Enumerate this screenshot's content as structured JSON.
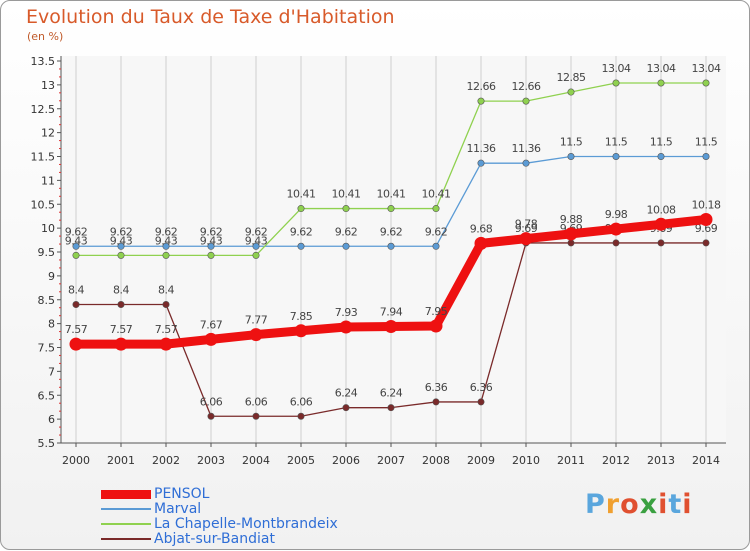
{
  "header": {
    "title": "Evolution du Taux de Taxe d'Habitation",
    "unit": "(en %)"
  },
  "logo": {
    "letters": [
      "P",
      "r",
      "o",
      "x",
      "i",
      "t",
      "i"
    ],
    "colors": [
      "#5aa6dd",
      "#f0a030",
      "#e05030",
      "#3aa040",
      "#e05030",
      "#5aa6dd",
      "#e05030"
    ]
  },
  "colors": {
    "title": "#d85a2a",
    "axis": "#555555",
    "grid": "#cfcfcf",
    "legend_text": "#2f6ed6"
  },
  "chart_data": {
    "type": "line",
    "x": [
      "2000",
      "2001",
      "2002",
      "2003",
      "2004",
      "2005",
      "2006",
      "2007",
      "2008",
      "2009",
      "2010",
      "2011",
      "2012",
      "2013",
      "2014"
    ],
    "yticks": [
      5.5,
      6,
      6.5,
      7,
      7.5,
      8,
      8.5,
      9,
      9.5,
      10,
      10.5,
      11,
      11.5,
      12,
      12.5,
      13,
      13.5
    ],
    "ylim": [
      5.5,
      13.5
    ],
    "grid": "vertical",
    "legend_position": "bottom-left",
    "series": [
      {
        "name": "Marval",
        "color": "#5b9bd5",
        "values": [
          9.62,
          9.62,
          9.62,
          9.62,
          9.62,
          9.62,
          9.62,
          9.62,
          9.62,
          11.36,
          11.36,
          11.5,
          11.5,
          11.5,
          11.5
        ],
        "labels": [
          "9.62",
          "9.62",
          "9.62",
          "9.62",
          "9.62",
          "9.62",
          "9.62",
          "9.62",
          "9.62",
          "11.36",
          "11.36",
          "11.5",
          "11.5",
          "11.5",
          "11.5"
        ]
      },
      {
        "name": "La Chapelle-Montbrandeix",
        "color": "#8fd14f",
        "values": [
          9.43,
          9.43,
          9.43,
          9.43,
          9.43,
          10.41,
          10.41,
          10.41,
          10.41,
          12.66,
          12.66,
          12.85,
          13.04,
          13.04,
          13.04
        ],
        "labels": [
          "9.43",
          "9.43",
          "9.43",
          "9.43",
          "9.43",
          "10.41",
          "10.41",
          "10.41",
          "10.41",
          "12.66",
          "12.66",
          "12.85",
          "13.04",
          "13.04",
          "13.04"
        ]
      },
      {
        "name": "Abjat-sur-Bandiat",
        "color": "#7a2a2a",
        "values": [
          8.4,
          8.4,
          8.4,
          6.06,
          6.06,
          6.06,
          6.24,
          6.24,
          6.36,
          6.36,
          9.69,
          9.69,
          9.69,
          9.69,
          9.69
        ],
        "labels": [
          "8.4",
          "8.4",
          "8.4",
          "6.06",
          "6.06",
          "6.06",
          "6.24",
          "6.24",
          "6.36",
          "6.36",
          "9.69",
          "9.69",
          "9.69",
          "9.69",
          "9.69"
        ]
      },
      {
        "name": "PENSOL",
        "color": "#ee1111",
        "values": [
          7.57,
          7.57,
          7.57,
          7.67,
          7.77,
          7.85,
          7.93,
          7.94,
          7.95,
          9.68,
          9.78,
          9.88,
          9.98,
          10.08,
          10.18
        ],
        "labels": [
          "7.57",
          "7.57",
          "7.57",
          "7.67",
          "7.77",
          "7.85",
          "7.93",
          "7.94",
          "7.95",
          "9.68",
          "9.78",
          "9.88",
          "9.98",
          "10.08",
          "10.18"
        ],
        "emphasis": true
      }
    ],
    "legend_order": [
      "PENSOL",
      "Marval",
      "La Chapelle-Montbrandeix",
      "Abjat-sur-Bandiat"
    ]
  }
}
